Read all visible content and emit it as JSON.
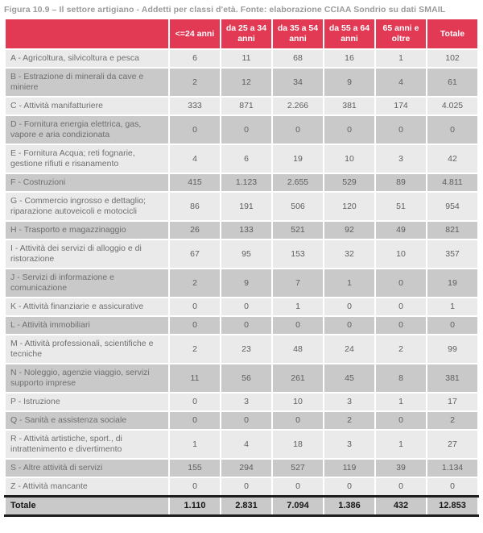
{
  "title": "Figura 10.9 – Il settore artigiano - Addetti per classi d'età. Fonte: elaborazione CCIAA Sondrio su dati SMAIL",
  "colors": {
    "header_bg": "#e23a55",
    "row_light": "#eaeaea",
    "row_dark": "#c9c9c9",
    "title_text": "#9a9a9a",
    "label_text": "#6f6f6f",
    "number_text": "#5e5e5e",
    "total_text": "#161616",
    "total_border": "#1d1d1d"
  },
  "table": {
    "columns": [
      "<=24 anni",
      "da 25 a 34 anni",
      "da 35 a 54 anni",
      "da 55 a 64 anni",
      "65 anni e oltre",
      "Totale"
    ],
    "rows": [
      {
        "label": "A - Agricoltura, silvicoltura e pesca",
        "values": [
          "6",
          "11",
          "68",
          "16",
          "1",
          "102"
        ]
      },
      {
        "label": "B - Estrazione di minerali da cave e miniere",
        "values": [
          "2",
          "12",
          "34",
          "9",
          "4",
          "61"
        ]
      },
      {
        "label": "C - Attività manifatturiere",
        "values": [
          "333",
          "871",
          "2.266",
          "381",
          "174",
          "4.025"
        ]
      },
      {
        "label": "D - Fornitura energia elettrica, gas, vapore e aria condizionata",
        "values": [
          "0",
          "0",
          "0",
          "0",
          "0",
          "0"
        ]
      },
      {
        "label": "E - Fornitura Acqua; reti fognarie, gestione rifiuti e risanamento",
        "values": [
          "4",
          "6",
          "19",
          "10",
          "3",
          "42"
        ]
      },
      {
        "label": "F - Costruzioni",
        "values": [
          "415",
          "1.123",
          "2.655",
          "529",
          "89",
          "4.811"
        ]
      },
      {
        "label": "G - Commercio ingrosso e dettaglio; riparazione autoveicoli e motocicli",
        "values": [
          "86",
          "191",
          "506",
          "120",
          "51",
          "954"
        ]
      },
      {
        "label": "H - Trasporto e magazzinaggio",
        "values": [
          "26",
          "133",
          "521",
          "92",
          "49",
          "821"
        ]
      },
      {
        "label": "I - Attività dei servizi di alloggio e di ristorazione",
        "values": [
          "67",
          "95",
          "153",
          "32",
          "10",
          "357"
        ]
      },
      {
        "label": "J - Servizi di informazione e comunicazione",
        "values": [
          "2",
          "9",
          "7",
          "1",
          "0",
          "19"
        ]
      },
      {
        "label": "K - Attività finanziarie e assicurative",
        "values": [
          "0",
          "0",
          "1",
          "0",
          "0",
          "1"
        ]
      },
      {
        "label": "L - Attività immobiliari",
        "values": [
          "0",
          "0",
          "0",
          "0",
          "0",
          "0"
        ]
      },
      {
        "label": "M - Attività professionali, scientifiche e tecniche",
        "values": [
          "2",
          "23",
          "48",
          "24",
          "2",
          "99"
        ]
      },
      {
        "label": "N - Noleggio, agenzie viaggio, servizi supporto imprese",
        "values": [
          "11",
          "56",
          "261",
          "45",
          "8",
          "381"
        ]
      },
      {
        "label": "P - Istruzione",
        "values": [
          "0",
          "3",
          "10",
          "3",
          "1",
          "17"
        ]
      },
      {
        "label": "Q - Sanità e assistenza sociale",
        "values": [
          "0",
          "0",
          "0",
          "2",
          "0",
          "2"
        ]
      },
      {
        "label": "R - Attività artistiche, sport., di intrattenimento e divertimento",
        "values": [
          "1",
          "4",
          "18",
          "3",
          "1",
          "27"
        ]
      },
      {
        "label": "S - Altre attività di servizi",
        "values": [
          "155",
          "294",
          "527",
          "119",
          "39",
          "1.134"
        ]
      },
      {
        "label": "Z - Attività mancante",
        "values": [
          "0",
          "0",
          "0",
          "0",
          "0",
          "0"
        ]
      }
    ],
    "total_row": {
      "label": "Totale",
      "values": [
        "1.110",
        "2.831",
        "7.094",
        "1.386",
        "432",
        "12.853"
      ]
    }
  }
}
